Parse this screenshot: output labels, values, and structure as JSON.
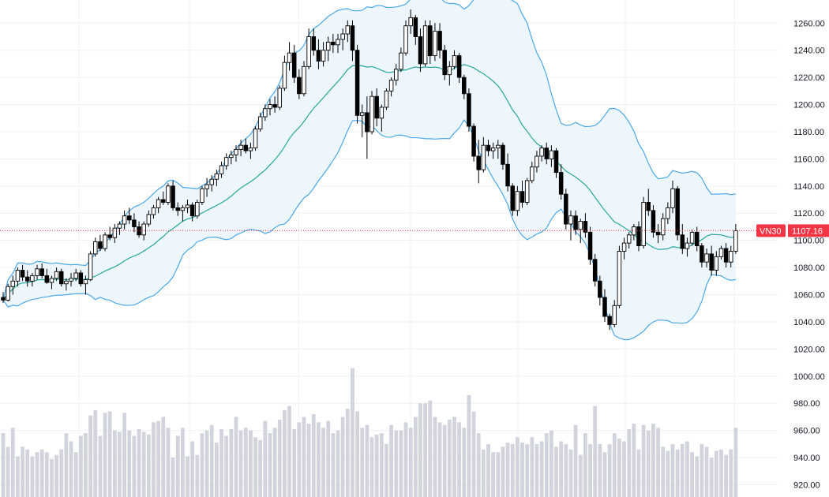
{
  "symbol": "VN30",
  "last_price_label": "1107.16",
  "colors": {
    "up_body": "#ffffff",
    "down_body": "#000000",
    "candle_outline": "#000000",
    "volume": "#d1d4dc",
    "band_line": "#4aa8e8",
    "band_fill": "#eef6fd",
    "basis_line": "#26a69a",
    "price_line": "#f23645",
    "tag_bg": "#f23645",
    "grid": "#eef0f3"
  },
  "chart_data": {
    "type": "candlestick",
    "title": "",
    "xlabel": "",
    "ylabel": "",
    "ylim": [
      911,
      1277
    ],
    "y_ticks": [
      "1260.00",
      "1240.00",
      "1220.00",
      "1200.00",
      "1180.00",
      "1160.00",
      "1140.00",
      "1120.00",
      "1100.00",
      "1080.00",
      "1060.00",
      "1040.00",
      "1020.00",
      "1000.00",
      "980.00",
      "960.00",
      "940.00",
      "920.00"
    ],
    "last_price": 1107.16,
    "candles": [
      [
        1058,
        1062,
        1054,
        1056
      ],
      [
        1056,
        1068,
        1055,
        1066
      ],
      [
        1066,
        1074,
        1060,
        1070
      ],
      [
        1070,
        1080,
        1066,
        1078
      ],
      [
        1078,
        1082,
        1070,
        1073
      ],
      [
        1073,
        1078,
        1066,
        1070
      ],
      [
        1070,
        1076,
        1066,
        1074
      ],
      [
        1074,
        1082,
        1071,
        1079
      ],
      [
        1079,
        1083,
        1072,
        1074
      ],
      [
        1074,
        1079,
        1068,
        1069
      ],
      [
        1069,
        1074,
        1064,
        1072
      ],
      [
        1072,
        1080,
        1070,
        1077
      ],
      [
        1077,
        1079,
        1066,
        1068
      ],
      [
        1068,
        1072,
        1063,
        1070
      ],
      [
        1070,
        1076,
        1066,
        1072
      ],
      [
        1072,
        1079,
        1070,
        1076
      ],
      [
        1076,
        1078,
        1066,
        1068
      ],
      [
        1068,
        1074,
        1060,
        1071
      ],
      [
        1071,
        1092,
        1070,
        1090
      ],
      [
        1090,
        1102,
        1088,
        1099
      ],
      [
        1099,
        1104,
        1092,
        1094
      ],
      [
        1094,
        1106,
        1092,
        1104
      ],
      [
        1104,
        1110,
        1100,
        1102
      ],
      [
        1102,
        1112,
        1098,
        1109
      ],
      [
        1109,
        1114,
        1104,
        1112
      ],
      [
        1112,
        1122,
        1108,
        1118
      ],
      [
        1118,
        1124,
        1112,
        1115
      ],
      [
        1115,
        1120,
        1106,
        1110
      ],
      [
        1110,
        1114,
        1102,
        1104
      ],
      [
        1104,
        1114,
        1100,
        1112
      ],
      [
        1112,
        1122,
        1110,
        1119
      ],
      [
        1119,
        1126,
        1116,
        1124
      ],
      [
        1124,
        1132,
        1120,
        1130
      ],
      [
        1130,
        1136,
        1126,
        1128
      ],
      [
        1128,
        1142,
        1126,
        1140
      ],
      [
        1140,
        1144,
        1122,
        1124
      ],
      [
        1124,
        1128,
        1118,
        1122
      ],
      [
        1122,
        1126,
        1114,
        1124
      ],
      [
        1124,
        1130,
        1120,
        1126
      ],
      [
        1126,
        1128,
        1114,
        1118
      ],
      [
        1118,
        1130,
        1116,
        1128
      ],
      [
        1128,
        1140,
        1126,
        1138
      ],
      [
        1138,
        1146,
        1132,
        1141
      ],
      [
        1141,
        1148,
        1136,
        1145
      ],
      [
        1145,
        1152,
        1140,
        1149
      ],
      [
        1149,
        1158,
        1146,
        1155
      ],
      [
        1155,
        1164,
        1152,
        1161
      ],
      [
        1161,
        1166,
        1156,
        1163
      ],
      [
        1163,
        1170,
        1158,
        1167
      ],
      [
        1167,
        1174,
        1162,
        1170
      ],
      [
        1170,
        1175,
        1164,
        1166
      ],
      [
        1166,
        1172,
        1160,
        1168
      ],
      [
        1168,
        1184,
        1166,
        1182
      ],
      [
        1182,
        1194,
        1180,
        1191
      ],
      [
        1191,
        1200,
        1188,
        1197
      ],
      [
        1197,
        1204,
        1192,
        1200
      ],
      [
        1200,
        1206,
        1194,
        1198
      ],
      [
        1198,
        1214,
        1196,
        1212
      ],
      [
        1212,
        1236,
        1210,
        1231
      ],
      [
        1231,
        1246,
        1225,
        1238
      ],
      [
        1238,
        1244,
        1216,
        1220
      ],
      [
        1220,
        1226,
        1204,
        1208
      ],
      [
        1208,
        1232,
        1206,
        1228
      ],
      [
        1228,
        1256,
        1226,
        1250
      ],
      [
        1250,
        1256,
        1236,
        1240
      ],
      [
        1240,
        1248,
        1226,
        1232
      ],
      [
        1232,
        1246,
        1228,
        1240
      ],
      [
        1240,
        1250,
        1232,
        1246
      ],
      [
        1246,
        1252,
        1238,
        1244
      ],
      [
        1244,
        1252,
        1238,
        1248
      ],
      [
        1248,
        1256,
        1240,
        1252
      ],
      [
        1252,
        1262,
        1246,
        1258
      ],
      [
        1258,
        1262,
        1232,
        1240
      ],
      [
        1240,
        1244,
        1186,
        1192
      ],
      [
        1192,
        1200,
        1176,
        1194
      ],
      [
        1194,
        1206,
        1160,
        1180
      ],
      [
        1180,
        1210,
        1178,
        1206
      ],
      [
        1206,
        1212,
        1184,
        1190
      ],
      [
        1190,
        1200,
        1180,
        1198
      ],
      [
        1198,
        1212,
        1196,
        1210
      ],
      [
        1210,
        1220,
        1206,
        1218
      ],
      [
        1218,
        1230,
        1214,
        1226
      ],
      [
        1226,
        1242,
        1224,
        1238
      ],
      [
        1238,
        1262,
        1236,
        1258
      ],
      [
        1258,
        1270,
        1252,
        1264
      ],
      [
        1264,
        1266,
        1244,
        1250
      ],
      [
        1250,
        1256,
        1224,
        1230
      ],
      [
        1230,
        1262,
        1228,
        1258
      ],
      [
        1258,
        1262,
        1230,
        1236
      ],
      [
        1236,
        1260,
        1232,
        1254
      ],
      [
        1254,
        1260,
        1234,
        1240
      ],
      [
        1240,
        1244,
        1218,
        1222
      ],
      [
        1222,
        1232,
        1214,
        1228
      ],
      [
        1228,
        1240,
        1226,
        1236
      ],
      [
        1236,
        1238,
        1216,
        1220
      ],
      [
        1220,
        1222,
        1204,
        1208
      ],
      [
        1208,
        1212,
        1180,
        1184
      ],
      [
        1184,
        1186,
        1158,
        1162
      ],
      [
        1162,
        1174,
        1142,
        1152
      ],
      [
        1152,
        1176,
        1150,
        1170
      ],
      [
        1170,
        1174,
        1162,
        1166
      ],
      [
        1166,
        1172,
        1160,
        1168
      ],
      [
        1168,
        1174,
        1160,
        1170
      ],
      [
        1170,
        1172,
        1152,
        1156
      ],
      [
        1156,
        1164,
        1136,
        1140
      ],
      [
        1140,
        1142,
        1118,
        1122
      ],
      [
        1122,
        1140,
        1118,
        1136
      ],
      [
        1136,
        1144,
        1124,
        1128
      ],
      [
        1128,
        1146,
        1126,
        1144
      ],
      [
        1144,
        1158,
        1142,
        1154
      ],
      [
        1154,
        1166,
        1150,
        1162
      ],
      [
        1162,
        1170,
        1158,
        1168
      ],
      [
        1168,
        1172,
        1156,
        1160
      ],
      [
        1160,
        1170,
        1154,
        1166
      ],
      [
        1166,
        1168,
        1146,
        1150
      ],
      [
        1150,
        1156,
        1130,
        1134
      ],
      [
        1134,
        1138,
        1108,
        1112
      ],
      [
        1112,
        1122,
        1100,
        1118
      ],
      [
        1118,
        1122,
        1104,
        1108
      ],
      [
        1108,
        1116,
        1098,
        1114
      ],
      [
        1114,
        1120,
        1102,
        1106
      ],
      [
        1106,
        1110,
        1082,
        1086
      ],
      [
        1086,
        1090,
        1066,
        1070
      ],
      [
        1070,
        1074,
        1052,
        1058
      ],
      [
        1058,
        1064,
        1040,
        1044
      ],
      [
        1044,
        1046,
        1034,
        1038
      ],
      [
        1038,
        1056,
        1036,
        1052
      ],
      [
        1052,
        1096,
        1050,
        1092
      ],
      [
        1092,
        1102,
        1086,
        1098
      ],
      [
        1098,
        1106,
        1094,
        1104
      ],
      [
        1104,
        1112,
        1100,
        1110
      ],
      [
        1110,
        1114,
        1092,
        1096
      ],
      [
        1096,
        1132,
        1094,
        1128
      ],
      [
        1128,
        1138,
        1118,
        1122
      ],
      [
        1122,
        1126,
        1102,
        1106
      ],
      [
        1106,
        1112,
        1098,
        1104
      ],
      [
        1104,
        1120,
        1100,
        1116
      ],
      [
        1116,
        1128,
        1112,
        1124
      ],
      [
        1124,
        1144,
        1120,
        1138
      ],
      [
        1138,
        1140,
        1100,
        1104
      ],
      [
        1104,
        1112,
        1090,
        1094
      ],
      [
        1094,
        1102,
        1088,
        1098
      ],
      [
        1098,
        1108,
        1096,
        1106
      ],
      [
        1106,
        1110,
        1092,
        1096
      ],
      [
        1096,
        1098,
        1080,
        1084
      ],
      [
        1084,
        1094,
        1080,
        1090
      ],
      [
        1090,
        1096,
        1074,
        1078
      ],
      [
        1078,
        1092,
        1074,
        1088
      ],
      [
        1088,
        1096,
        1086,
        1094
      ],
      [
        1094,
        1098,
        1080,
        1084
      ],
      [
        1084,
        1096,
        1080,
        1092
      ],
      [
        1092,
        1112,
        1090,
        1107.16
      ]
    ],
    "volume": [
      958,
      948,
      962,
      941,
      948,
      946,
      941,
      944,
      946,
      944,
      939,
      942,
      946,
      958,
      952,
      944,
      956,
      958,
      971,
      975,
      956,
      973,
      974,
      960,
      959,
      973,
      960,
      956,
      961,
      959,
      957,
      966,
      967,
      970,
      962,
      940,
      956,
      962,
      941,
      952,
      942,
      958,
      960,
      964,
      951,
      961,
      956,
      961,
      970,
      960,
      962,
      960,
      955,
      953,
      967,
      958,
      962,
      968,
      975,
      978,
      961,
      966,
      970,
      965,
      972,
      966,
      962,
      967,
      958,
      960,
      970,
      976,
      1006,
      974,
      962,
      964,
      955,
      957,
      958,
      950,
      964,
      960,
      960,
      966,
      962,
      970,
      980,
      980,
      982,
      970,
      966,
      964,
      968,
      970,
      966,
      962,
      986,
      974,
      958,
      946,
      950,
      944,
      944,
      948,
      951,
      950,
      955,
      951,
      950,
      955,
      950,
      952,
      958,
      960,
      948,
      952,
      950,
      946,
      964,
      942,
      958,
      950,
      978,
      950,
      944,
      950,
      958,
      954,
      952,
      961,
      965,
      946,
      964,
      960,
      965,
      962,
      948,
      945,
      950,
      946,
      950,
      952,
      944,
      941,
      950,
      948,
      940,
      945,
      946,
      942,
      946,
      962
    ]
  }
}
